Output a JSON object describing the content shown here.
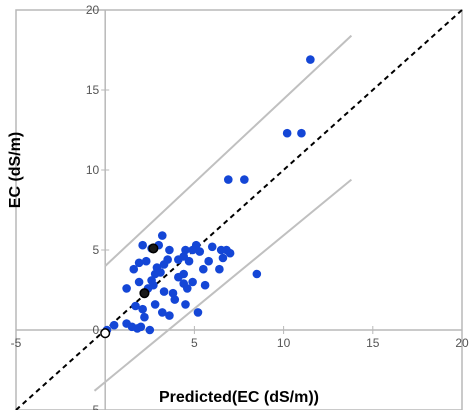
{
  "chart_data": {
    "type": "scatter",
    "title": "",
    "xlabel": "Predicted(EC (dS/m))",
    "ylabel": "EC (dS/m)",
    "xlim": [
      -5,
      20
    ],
    "ylim": [
      -5,
      20
    ],
    "x_ticks": [
      "-5",
      "0",
      "5",
      "10",
      "15",
      "20"
    ],
    "y_ticks": [
      "-5",
      "0",
      "5",
      "10",
      "15",
      "20"
    ],
    "grid": false,
    "legend": "none",
    "colors": {
      "points": "#1446d6",
      "highlight_fill": "#1a1a1a",
      "bounds": "#c0c0c0",
      "identity": "#000000",
      "frame": "#b8b8b8"
    },
    "series": [
      {
        "values": [
          [
            0.1,
            0.0
          ],
          [
            0.5,
            0.3
          ],
          [
            1.2,
            0.4
          ],
          [
            1.5,
            0.2
          ],
          [
            1.8,
            0.1
          ],
          [
            2.0,
            0.2
          ],
          [
            2.5,
            0.0
          ],
          [
            2.2,
            0.8
          ],
          [
            1.2,
            2.6
          ],
          [
            1.7,
            1.5
          ],
          [
            2.1,
            1.3
          ],
          [
            2.2,
            2.3
          ],
          [
            2.4,
            2.6
          ],
          [
            2.6,
            3.1
          ],
          [
            2.8,
            3.5
          ],
          [
            1.9,
            3.0
          ],
          [
            1.6,
            3.8
          ],
          [
            1.9,
            4.2
          ],
          [
            2.3,
            4.3
          ],
          [
            2.1,
            5.3
          ],
          [
            2.6,
            5.1
          ],
          [
            3.0,
            5.3
          ],
          [
            3.2,
            5.9
          ],
          [
            3.6,
            5.0
          ],
          [
            3.5,
            4.4
          ],
          [
            2.9,
            3.9
          ],
          [
            3.3,
            4.1
          ],
          [
            3.1,
            3.6
          ],
          [
            2.7,
            2.8
          ],
          [
            3.3,
            2.4
          ],
          [
            3.8,
            2.3
          ],
          [
            4.1,
            3.3
          ],
          [
            4.4,
            3.5
          ],
          [
            4.4,
            2.9
          ],
          [
            4.6,
            2.6
          ],
          [
            4.9,
            3.0
          ],
          [
            4.1,
            4.4
          ],
          [
            4.4,
            4.6
          ],
          [
            4.7,
            4.3
          ],
          [
            5.3,
            4.9
          ],
          [
            5.1,
            5.3
          ],
          [
            4.9,
            5.0
          ],
          [
            5.8,
            4.3
          ],
          [
            5.5,
            3.8
          ],
          [
            5.6,
            2.8
          ],
          [
            3.9,
            1.9
          ],
          [
            4.5,
            1.6
          ],
          [
            3.2,
            1.1
          ],
          [
            3.6,
            0.9
          ],
          [
            2.8,
            1.6
          ],
          [
            6.0,
            5.2
          ],
          [
            6.5,
            5.0
          ],
          [
            6.8,
            5.0
          ],
          [
            6.6,
            4.5
          ],
          [
            6.4,
            3.8
          ],
          [
            5.2,
            1.1
          ],
          [
            4.5,
            5.0
          ],
          [
            7.0,
            4.8
          ],
          [
            6.9,
            9.4
          ],
          [
            7.8,
            9.4
          ],
          [
            8.5,
            3.5
          ],
          [
            10.2,
            12.3
          ],
          [
            11.0,
            12.3
          ],
          [
            11.5,
            16.9
          ]
        ]
      }
    ],
    "highlight_points": [
      [
        2.7,
        5.1
      ],
      [
        2.2,
        2.3
      ],
      [
        0.0,
        -0.2
      ]
    ],
    "lines": {
      "identity": [
        [
          -5,
          -5
        ],
        [
          20,
          20
        ]
      ],
      "upper_bound": [
        [
          0,
          4
        ],
        [
          13.8,
          18.4
        ]
      ],
      "lower_bound": [
        [
          -0.6,
          -3.8
        ],
        [
          13.8,
          9.4
        ]
      ]
    }
  }
}
